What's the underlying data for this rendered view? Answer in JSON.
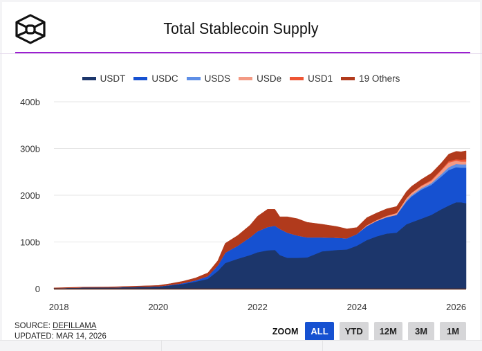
{
  "header": {
    "title": "Total Stablecoin Supply",
    "logo": "cube-logo-icon",
    "accent_color": "#9b1fd0"
  },
  "legend": [
    {
      "label": "USDT",
      "color": "#1c366b"
    },
    {
      "label": "USDC",
      "color": "#1651d1"
    },
    {
      "label": "USDS",
      "color": "#5e8ee6"
    },
    {
      "label": "USDe",
      "color": "#f39a84"
    },
    {
      "label": "USD1",
      "color": "#ee5534"
    },
    {
      "label": "19 Others",
      "color": "#b13a1c"
    }
  ],
  "footer": {
    "source_prefix": "SOURCE: ",
    "source_link": "DEFILLAMA",
    "updated": "UPDATED: MAR 14, 2026"
  },
  "zoom": {
    "label": "ZOOM",
    "buttons": [
      "ALL",
      "YTD",
      "12M",
      "3M",
      "1M"
    ],
    "active": "ALL"
  },
  "chart_data": {
    "type": "area",
    "stacked": true,
    "title": "Total Stablecoin Supply",
    "xlabel": "",
    "ylabel": "",
    "unit": "billions USD",
    "ylim": [
      0,
      400
    ],
    "xlim": [
      2017.9,
      2026.2
    ],
    "grid": true,
    "legend_position": "top",
    "y_ticks": [
      "0",
      "100b",
      "200b",
      "300b",
      "400b"
    ],
    "y_tick_values": [
      0,
      100,
      200,
      300,
      400
    ],
    "x_ticks": [
      "2018",
      "2020",
      "2022",
      "2024",
      "2026"
    ],
    "x_tick_values": [
      2018,
      2020,
      2022,
      2024,
      2026
    ],
    "x": [
      2017.9,
      2018.5,
      2019.0,
      2019.5,
      2020.0,
      2020.25,
      2020.5,
      2020.75,
      2021.0,
      2021.2,
      2021.35,
      2021.6,
      2021.85,
      2022.0,
      2022.2,
      2022.35,
      2022.45,
      2022.6,
      2022.8,
      2023.0,
      2023.3,
      2023.6,
      2023.8,
      2024.0,
      2024.2,
      2024.4,
      2024.6,
      2024.8,
      2025.0,
      2025.1,
      2025.3,
      2025.5,
      2025.7,
      2025.85,
      2026.0,
      2026.1,
      2026.2
    ],
    "series": [
      {
        "name": "USDT",
        "values": [
          1.2,
          2.5,
          2.5,
          3.5,
          4.5,
          7,
          10,
          15,
          21,
          38,
          55,
          64,
          72,
          78,
          82,
          83,
          72,
          66,
          66,
          67,
          80,
          83,
          84,
          92,
          104,
          112,
          118,
          120,
          138,
          142,
          150,
          158,
          170,
          178,
          185,
          185,
          183
        ]
      },
      {
        "name": "USDC",
        "values": [
          0,
          0.1,
          0.2,
          0.3,
          0.5,
          1,
          2,
          3,
          6,
          12,
          22,
          28,
          38,
          45,
          50,
          52,
          56,
          54,
          48,
          43,
          30,
          26,
          24,
          25,
          30,
          33,
          35,
          38,
          48,
          55,
          62,
          64,
          70,
          76,
          75,
          74,
          76
        ]
      },
      {
        "name": "USDS",
        "values": [
          0,
          0,
          0,
          0,
          0,
          0,
          0,
          0,
          0,
          0,
          0,
          0,
          0,
          0,
          0,
          0,
          0,
          0,
          0,
          0,
          0,
          0,
          0,
          0,
          0,
          0,
          0,
          0,
          3,
          3,
          3,
          4,
          5,
          6,
          7,
          7,
          7
        ]
      },
      {
        "name": "USDe",
        "values": [
          0,
          0,
          0,
          0,
          0,
          0,
          0,
          0,
          0,
          0,
          0,
          0,
          0,
          0,
          0,
          0,
          0,
          0,
          0,
          0,
          0,
          0,
          0,
          0,
          2,
          2,
          3,
          4,
          5,
          5,
          5,
          5,
          8,
          10,
          7,
          6,
          6
        ]
      },
      {
        "name": "USD1",
        "values": [
          0,
          0,
          0,
          0,
          0,
          0,
          0,
          0,
          0,
          0,
          0,
          0,
          0,
          0,
          0,
          0,
          0,
          0,
          0,
          0,
          0,
          0,
          0,
          0,
          0,
          0,
          0,
          0,
          0,
          0,
          1,
          2,
          2,
          3,
          3,
          4,
          5
        ]
      },
      {
        "name": "19 Others",
        "values": [
          0.6,
          0.8,
          1,
          1.5,
          2,
          3,
          4,
          5,
          7,
          10,
          20,
          22,
          26,
          32,
          38,
          35,
          26,
          34,
          36,
          32,
          28,
          24,
          20,
          14,
          16,
          15,
          15,
          14,
          14,
          14,
          13,
          14,
          14,
          15,
          17,
          17,
          18
        ]
      }
    ]
  }
}
